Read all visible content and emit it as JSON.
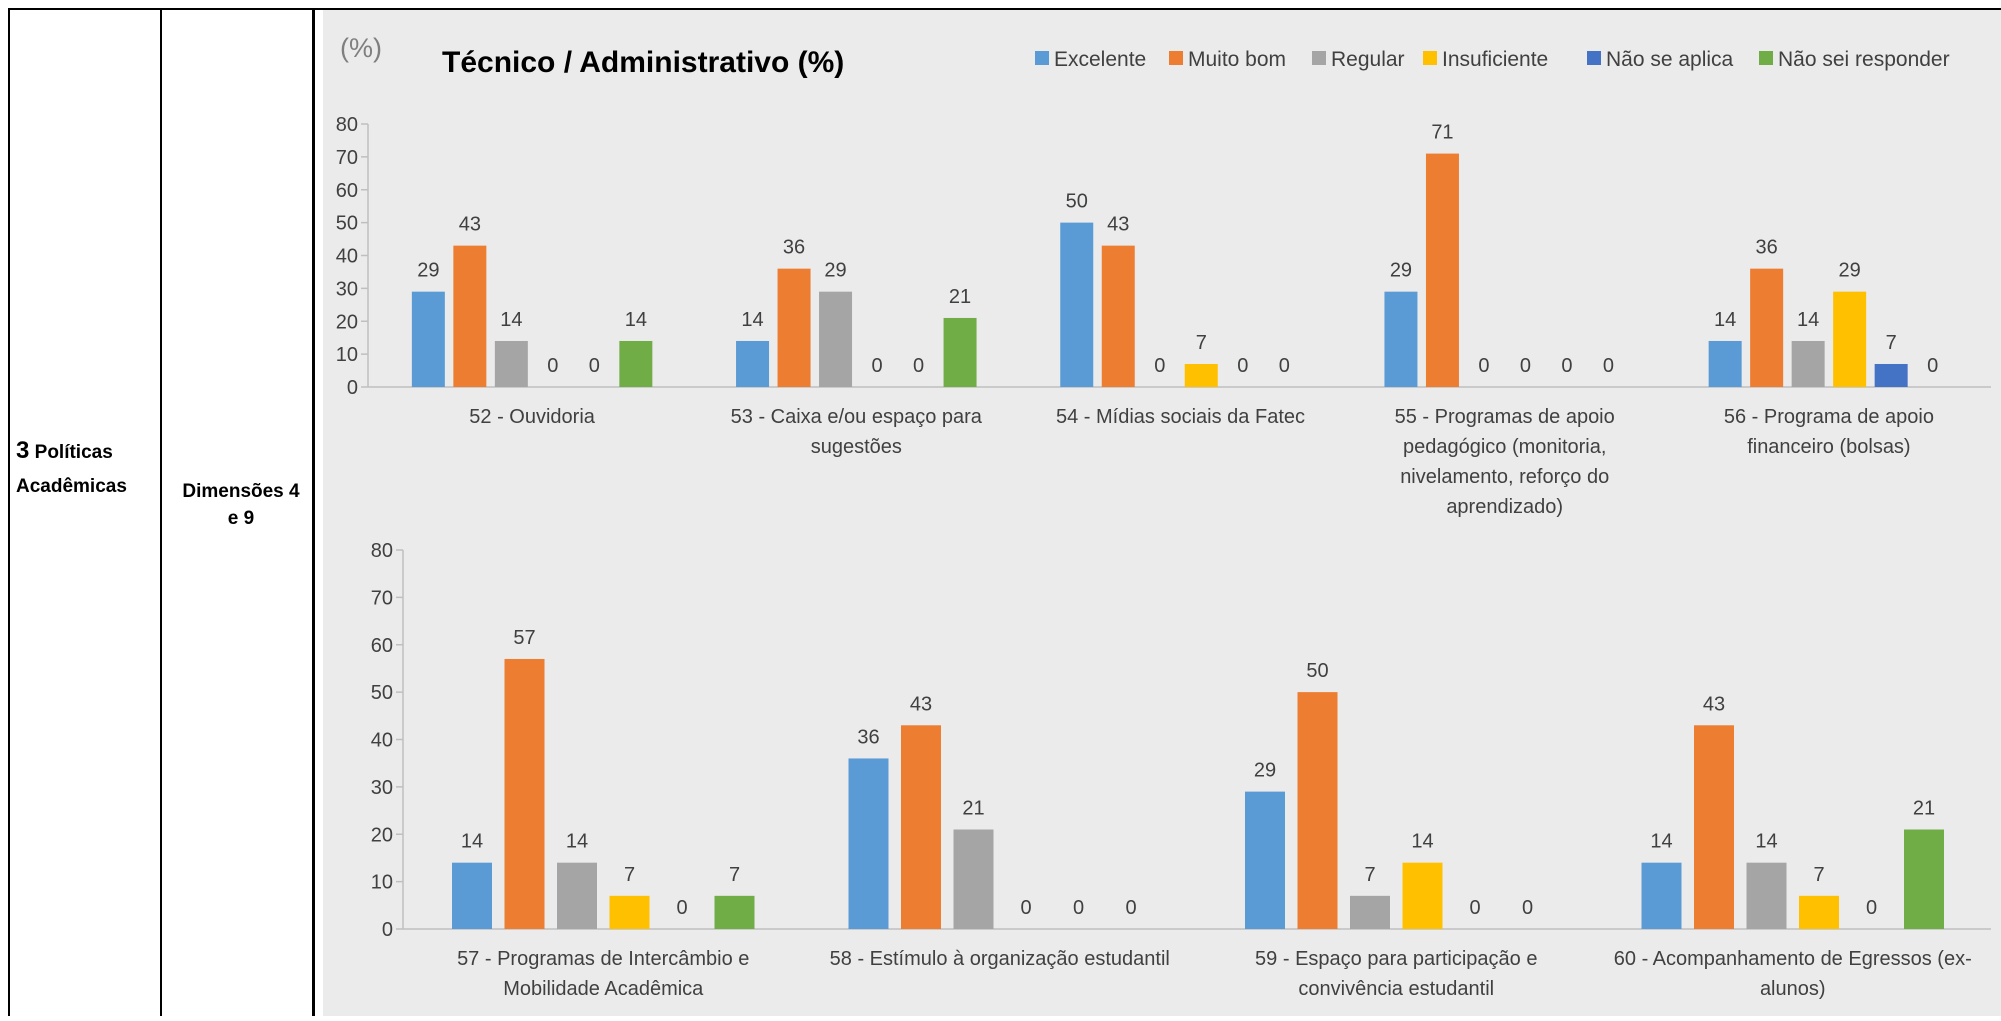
{
  "table": {
    "col1_number": "3",
    "col1_label_line1": "Políticas",
    "col1_label_line2": "Acadêmicas",
    "col2_label_line1": "Dimensões 4",
    "col2_label_line2": "e 9"
  },
  "chart_data": {
    "type": "bar",
    "title": "Técnico / Administrativo (%)",
    "unit_label": "(%)",
    "legend_position": "top-right",
    "grid": false,
    "series": [
      {
        "name": "Excelente",
        "color": "#5b9bd5"
      },
      {
        "name": "Muito bom",
        "color": "#ed7d31"
      },
      {
        "name": "Regular",
        "color": "#a5a5a5"
      },
      {
        "name": "Insuficiente",
        "color": "#ffc000"
      },
      {
        "name": "Não se aplica",
        "color": "#4472c4"
      },
      {
        "name": "Não sei responder",
        "color": "#70ad47"
      }
    ],
    "panels": [
      {
        "ylim": [
          0,
          80
        ],
        "yticks": [
          "0",
          "10",
          "20",
          "30",
          "40",
          "50",
          "60",
          "70",
          "80"
        ],
        "groups": [
          {
            "label": [
              "52 - Ouvidoria"
            ],
            "values": [
              29,
              43,
              14,
              0,
              0,
              14
            ]
          },
          {
            "label": [
              "53 - Caixa e/ou espaço para",
              "sugestões"
            ],
            "values": [
              14,
              36,
              29,
              0,
              0,
              21
            ]
          },
          {
            "label": [
              "54 - Mídias sociais da Fatec"
            ],
            "values": [
              50,
              43,
              0,
              7,
              0,
              0
            ]
          },
          {
            "label": [
              "55 - Programas de apoio",
              "pedagógico (monitoria,",
              "nivelamento, reforço do",
              "aprendizado)"
            ],
            "values": [
              29,
              71,
              0,
              0,
              0,
              0
            ]
          },
          {
            "label": [
              "56 - Programa de apoio",
              "financeiro (bolsas)"
            ],
            "values": [
              14,
              36,
              14,
              29,
              7,
              0
            ]
          }
        ]
      },
      {
        "ylim": [
          0,
          80
        ],
        "yticks": [
          "0",
          "10",
          "20",
          "30",
          "40",
          "50",
          "60",
          "70",
          "80"
        ],
        "groups": [
          {
            "label": [
              "57 - Programas de Intercâmbio e",
              "Mobilidade Acadêmica"
            ],
            "values": [
              14,
              57,
              14,
              7,
              0,
              7
            ]
          },
          {
            "label": [
              "58 - Estímulo à organização estudantil"
            ],
            "values": [
              36,
              43,
              21,
              0,
              0,
              0
            ]
          },
          {
            "label": [
              "59 - Espaço para participação e",
              "convivência estudantil"
            ],
            "values": [
              29,
              50,
              7,
              14,
              0,
              0
            ]
          },
          {
            "label": [
              "60 - Acompanhamento de Egressos (ex-",
              "alunos)"
            ],
            "values": [
              14,
              43,
              14,
              7,
              0,
              21
            ]
          }
        ]
      }
    ]
  }
}
